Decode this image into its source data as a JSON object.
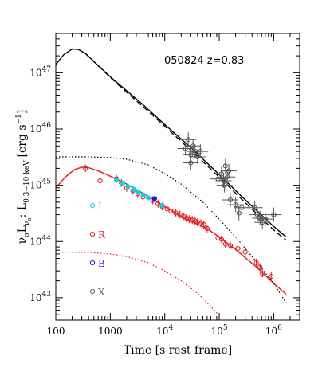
{
  "chart_data": {
    "type": "scatter",
    "annotation": "050824  z=0.83",
    "xlabel": "Time [s rest frame]",
    "ylabel_main": "ν",
    "ylabel_sub1": "o",
    "ylabel_mid": "L",
    "ylabel_sub2": "ν",
    "ylabel_sub3": "o",
    "ylabel_sep": ";   L",
    "ylabel_sub4": "0.3−10 keV",
    "ylabel_unit": "[erg s",
    "ylabel_exp": "−1",
    "ylabel_close": "]",
    "xscale": "log",
    "yscale": "log",
    "xlim": [
      100,
      3000000
    ],
    "ylim": [
      4e+42,
      5e+47
    ],
    "x_ticks": [
      {
        "value": 100,
        "label": "100"
      },
      {
        "value": 1000,
        "label": "1000"
      },
      {
        "value": 10000,
        "base": "10",
        "exp": "4"
      },
      {
        "value": 100000,
        "base": "10",
        "exp": "5"
      },
      {
        "value": 1000000,
        "base": "10",
        "exp": "6"
      }
    ],
    "y_ticks": [
      {
        "value": 1e+43,
        "base": "10",
        "exp": "43"
      },
      {
        "value": 1e+44,
        "base": "10",
        "exp": "44"
      },
      {
        "value": 1e+45,
        "base": "10",
        "exp": "45"
      },
      {
        "value": 1e+46,
        "base": "10",
        "exp": "46"
      },
      {
        "value": 1e+47,
        "base": "10",
        "exp": "47"
      }
    ],
    "legend": [
      {
        "label": "I",
        "color": "#00d8e8"
      },
      {
        "label": "R",
        "color": "#e41a1a"
      },
      {
        "label": "B",
        "color": "#1a1ae8"
      },
      {
        "label": "X",
        "color": "#666666"
      }
    ],
    "colors": {
      "X": "#555555",
      "R": "#e41a1a",
      "I": "#00d8e8",
      "B": "#1a1ae8",
      "model_x": "#000000",
      "model_opt": "#e41a1a"
    },
    "series": [
      {
        "name": "X",
        "points": [
          [
            24000,
            4.5e+45
          ],
          [
            27000,
            6.5e+45
          ],
          [
            30000,
            3.5e+45
          ],
          [
            33000,
            5e+45
          ],
          [
            36000,
            4e+45
          ],
          [
            40000,
            3.2e+45
          ],
          [
            45000,
            4e+45
          ],
          [
            30000,
            2.5e+45
          ],
          [
            110000,
            1.6e+45
          ],
          [
            120000,
            1.2e+45
          ],
          [
            130000,
            2.2e+45
          ],
          [
            140000,
            1.4e+45
          ],
          [
            150000,
            1.8e+45
          ],
          [
            125000,
            1e+45
          ],
          [
            95000,
            1.3e+45
          ],
          [
            160000,
            5.5e+44
          ],
          [
            200000,
            4.5e+44
          ],
          [
            260000,
            4e+44
          ],
          [
            230000,
            3.2e+44
          ],
          [
            450000,
            4e+44
          ],
          [
            500000,
            3e+44
          ],
          [
            560000,
            2.6e+44
          ],
          [
            620000,
            2.2e+44
          ],
          [
            700000,
            2.5e+44
          ],
          [
            1000000,
            3e+44
          ]
        ]
      },
      {
        "name": "R",
        "points": [
          [
            350,
            2e+45
          ],
          [
            650,
            1.2e+45
          ],
          [
            1300,
            1.3e+45
          ],
          [
            1600,
            1.1e+45
          ],
          [
            2000,
            9e+44
          ],
          [
            2600,
            8e+44
          ],
          [
            3200,
            7e+44
          ],
          [
            4000,
            6.2e+44
          ],
          [
            6000,
            5.4e+44
          ],
          [
            7500,
            4.7e+44
          ],
          [
            9000,
            4.2e+44
          ],
          [
            11000,
            3.8e+44
          ],
          [
            13000,
            3.5e+44
          ],
          [
            16000,
            3.2e+44
          ],
          [
            19000,
            3e+44
          ],
          [
            22000,
            2.8e+44
          ],
          [
            25000,
            2.6e+44
          ],
          [
            28000,
            2.5e+44
          ],
          [
            32000,
            2.4e+44
          ],
          [
            36000,
            2.3e+44
          ],
          [
            40000,
            2.2e+44
          ],
          [
            46000,
            2.1e+44
          ],
          [
            52000,
            2e+44
          ],
          [
            60000,
            1.7e+44
          ],
          [
            95000,
            1.15e+44
          ],
          [
            110000,
            1.1e+44
          ],
          [
            130000,
            9e+43
          ],
          [
            160000,
            8.5e+43
          ],
          [
            220000,
            7.5e+43
          ],
          [
            300000,
            6.5e+43
          ],
          [
            480000,
            4.2e+43
          ],
          [
            560000,
            3.5e+43
          ],
          [
            620000,
            2.7e+43
          ],
          [
            900000,
            2.4e+43
          ]
        ]
      },
      {
        "name": "I",
        "points": [
          [
            1300,
            1.25e+45
          ],
          [
            1700,
            1.1e+45
          ],
          [
            2100,
            9.5e+44
          ],
          [
            2700,
            8.5e+44
          ],
          [
            3200,
            7.5e+44
          ],
          [
            4000,
            6.8e+44
          ],
          [
            5000,
            6e+44
          ],
          [
            9000,
            4.4e+44
          ]
        ]
      },
      {
        "name": "B",
        "points": [
          [
            6500,
            5.8e+44
          ]
        ]
      }
    ],
    "curves": [
      {
        "name": "X model",
        "style": "solid",
        "color": "#000000",
        "points": [
          [
            100,
            1.4e+47
          ],
          [
            140,
            2.1e+47
          ],
          [
            200,
            2.65e+47
          ],
          [
            260,
            2.6e+47
          ],
          [
            350,
            2.2e+47
          ],
          [
            600,
            1.35e+47
          ],
          [
            1000,
            8.5e+46
          ],
          [
            2000,
            4.8e+46
          ],
          [
            4000,
            2.7e+46
          ],
          [
            10000,
            1.2e+46
          ],
          [
            30000,
            4.7e+45
          ],
          [
            100000,
            1.55e+45
          ],
          [
            300000,
            5.5e+44
          ],
          [
            1000000,
            1.85e+44
          ],
          [
            1700000,
            1.2e+44
          ]
        ]
      },
      {
        "name": "X model dashed",
        "style": "dashed",
        "color": "#000000",
        "points": [
          [
            350,
            2.2e+47
          ],
          [
            600,
            1.33e+47
          ],
          [
            1000,
            8.3e+46
          ],
          [
            2000,
            4.5e+46
          ],
          [
            4000,
            2.5e+46
          ],
          [
            10000,
            1.12e+46
          ],
          [
            30000,
            4.2e+45
          ],
          [
            100000,
            1.4e+45
          ],
          [
            300000,
            4.9e+44
          ],
          [
            1000000,
            1.6e+44
          ],
          [
            1700000,
            1.05e+44
          ]
        ]
      },
      {
        "name": "optical model",
        "style": "solid",
        "color": "#e41a1a",
        "points": [
          [
            100,
            9e+44
          ],
          [
            150,
            1.4e+45
          ],
          [
            220,
            1.9e+45
          ],
          [
            300,
            2.1e+45
          ],
          [
            400,
            2.05e+45
          ],
          [
            600,
            1.8e+45
          ],
          [
            1000,
            1.45e+45
          ],
          [
            2000,
            1.05e+45
          ],
          [
            4000,
            7.2e+44
          ],
          [
            8000,
            4.8e+44
          ],
          [
            15000,
            3.3e+44
          ],
          [
            30000,
            2.3e+44
          ],
          [
            60000,
            1.7e+44
          ],
          [
            100000,
            1.2e+44
          ],
          [
            200000,
            7.2e+43
          ],
          [
            500000,
            3.4e+43
          ],
          [
            1000000,
            1.8e+43
          ],
          [
            1700000,
            1.15e+43
          ]
        ]
      },
      {
        "name": "X dotted",
        "style": "dotted",
        "color": "#000000",
        "points": [
          [
            100,
            3.2e+45
          ],
          [
            400,
            3.2e+45
          ],
          [
            1000,
            3.1e+45
          ],
          [
            2000,
            2.9e+45
          ],
          [
            5000,
            2.3e+45
          ],
          [
            10000,
            1.6e+45
          ],
          [
            20000,
            1.05e+45
          ],
          [
            50000,
            5e+44
          ],
          [
            100000,
            2.5e+44
          ],
          [
            200000,
            1.2e+44
          ],
          [
            500000,
            4.2e+43
          ],
          [
            1000000,
            1.8e+43
          ],
          [
            1700000,
            8e+42
          ]
        ]
      },
      {
        "name": "optical dotted",
        "style": "dotted",
        "color": "#e41a1a",
        "points": [
          [
            100,
            6.5e+43
          ],
          [
            400,
            6.4e+43
          ],
          [
            1000,
            6e+43
          ],
          [
            2000,
            5.4e+43
          ],
          [
            5000,
            4.2e+43
          ],
          [
            10000,
            3e+43
          ],
          [
            20000,
            2e+43
          ],
          [
            40000,
            1.2e+43
          ],
          [
            70000,
            7e+42
          ],
          [
            100000,
            4.8e+42
          ]
        ]
      }
    ]
  }
}
